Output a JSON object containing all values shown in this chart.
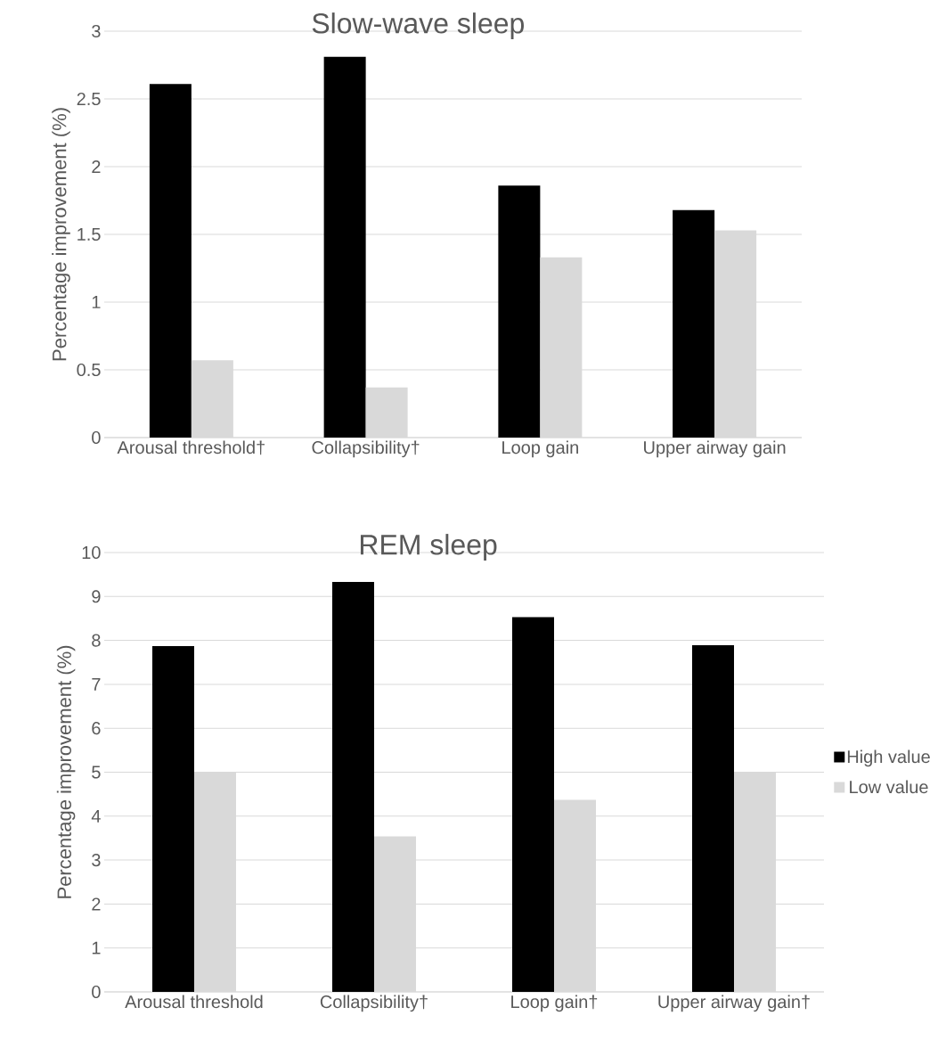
{
  "chart_data": [
    {
      "type": "bar",
      "title": "Slow-wave sleep",
      "ylabel": "Percentage improvement (%)",
      "categories": [
        "Arousal threshold†",
        "Collapsibility†",
        "Loop gain",
        "Upper airway gain"
      ],
      "series": [
        {
          "color": "#000000",
          "values": [
            2.61,
            2.81,
            1.86,
            1.68
          ]
        },
        {
          "color": "#d9d9d9",
          "values": [
            0.57,
            0.37,
            1.33,
            1.53
          ]
        }
      ],
      "ylim": [
        0,
        3
      ],
      "yticks": [
        0,
        0.5,
        1,
        1.5,
        2,
        2.5,
        3
      ],
      "grid": "y"
    },
    {
      "type": "bar",
      "title": "REM sleep",
      "ylabel": "Percentage improvement (%)",
      "categories": [
        "Arousal threshold",
        "Collapsibility†",
        "Loop gain†",
        "Upper airway gain†"
      ],
      "series": [
        {
          "name": "High value",
          "color": "#000000",
          "values": [
            7.87,
            9.33,
            8.53,
            7.89
          ]
        },
        {
          "name": "Low value",
          "color": "#d9d9d9",
          "values": [
            5.01,
            3.54,
            4.37,
            4.99
          ]
        }
      ],
      "ylim": [
        0,
        10
      ],
      "yticks": [
        0,
        1,
        2,
        3,
        4,
        5,
        6,
        7,
        8,
        9,
        10
      ],
      "grid": "y",
      "legend": "right"
    }
  ]
}
